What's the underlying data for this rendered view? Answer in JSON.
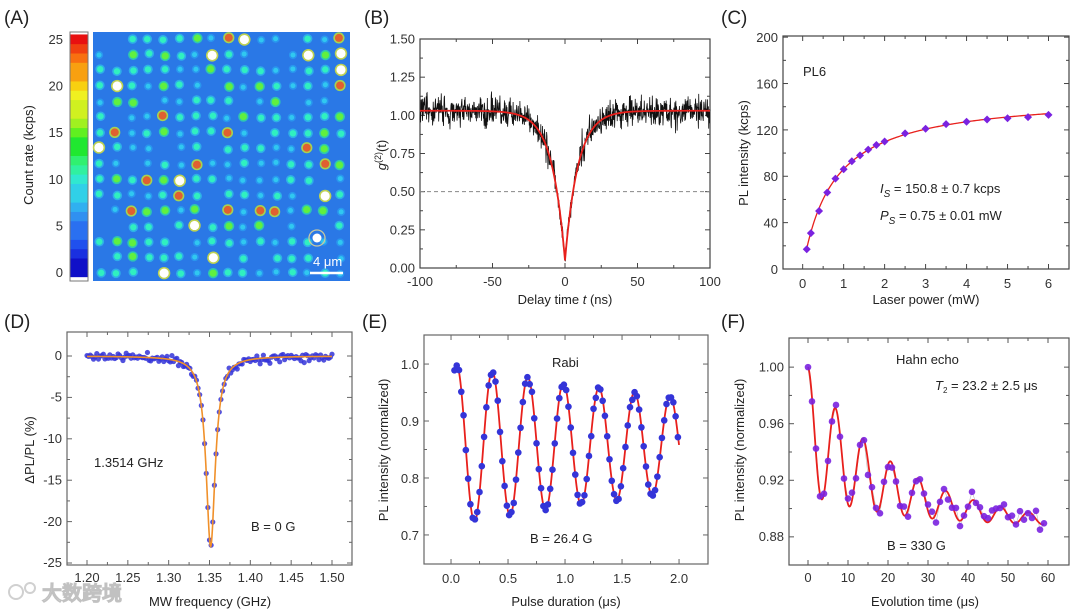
{
  "watermark": {
    "text": "大数跨境"
  },
  "panels": {
    "A": {
      "label": "(A)"
    },
    "B": {
      "label": "(B)"
    },
    "C": {
      "label": "(C)"
    },
    "D": {
      "label": "(D)"
    },
    "E": {
      "label": "(E)"
    },
    "F": {
      "label": "(F)"
    }
  },
  "colors": {
    "fit_red": "#e8201c",
    "fit_orange": "#f0902a",
    "points_blue": "#3434d8",
    "points_purple": "#7a22e0",
    "image_bg": "#2a78e6"
  },
  "chart_data": [
    {
      "id": "A",
      "type": "heatmap",
      "colorbar": {
        "label": "Count rate (kcps)",
        "ticks": [
          0,
          5,
          10,
          15,
          20,
          25
        ],
        "tick_labels": [
          "0",
          "5",
          "10",
          "15",
          "20",
          "25"
        ],
        "range": [
          0,
          26
        ]
      },
      "scale_bar": "4 μm",
      "grid": {
        "columns": 16,
        "rows": 16
      }
    },
    {
      "id": "B",
      "type": "line",
      "xlabel": "Delay time",
      "xlabel_var": "t",
      "xlabel_unit": " (ns)",
      "ylabel_main": "g",
      "ylabel_sup": "(2)",
      "ylabel_rest": "(t)",
      "xlim": [
        -100,
        100
      ],
      "ylim": [
        0,
        1.5
      ],
      "xticks": [
        -100,
        -50,
        0,
        50,
        100
      ],
      "xtick_labels": [
        "-100",
        "-50",
        "0",
        "50",
        "100"
      ],
      "yticks": [
        0,
        0.25,
        0.5,
        0.75,
        1.0,
        1.25,
        1.5
      ],
      "ytick_labels": [
        "0.00",
        "0.25",
        "0.50",
        "0.75",
        "1.00",
        "1.25",
        "1.50"
      ],
      "reference_line": 0.5,
      "fit": {
        "baseline": 1.03,
        "g2_zero": 0.05,
        "tau_ns": 9
      },
      "noise_amplitude": 0.07
    },
    {
      "id": "C",
      "type": "scatter",
      "xlabel": "Laser power (mW)",
      "ylabel": "PL intensity (kcps)",
      "xlim": [
        -0.48,
        6.5
      ],
      "ylim": [
        0,
        201
      ],
      "xticks": [
        0,
        1,
        2,
        3,
        4,
        5,
        6
      ],
      "xtick_labels": [
        "0",
        "1",
        "2",
        "3",
        "4",
        "5",
        "6"
      ],
      "yticks": [
        0,
        40,
        80,
        120,
        160,
        200
      ],
      "ytick_labels": [
        "0",
        "40",
        "80",
        "120",
        "160",
        "200"
      ],
      "x": [
        0.1,
        0.2,
        0.4,
        0.6,
        0.8,
        1.0,
        1.2,
        1.4,
        1.6,
        1.8,
        2.0,
        2.5,
        3.0,
        3.5,
        4.0,
        4.5,
        5.0,
        5.5,
        6.0
      ],
      "y": [
        17,
        31,
        50,
        66,
        78,
        86,
        93,
        98,
        103,
        107,
        110,
        117,
        121,
        125,
        127,
        129,
        130,
        131,
        133
      ],
      "fit": {
        "Is": 150.8,
        "Ps": 0.75
      },
      "annotations": {
        "name": "PL6",
        "is": {
          "sym": "I",
          "sub": "S",
          "rest": " = 150.8 ± 0.7 kcps"
        },
        "ps": {
          "sym": "P",
          "sub": "S",
          "rest": " = 0.75 ± 0.01 mW"
        }
      }
    },
    {
      "id": "D",
      "type": "scatter",
      "xlabel": "MW frequency (GHz)",
      "ylabel": "ΔPL/PL  (%)",
      "xlim": [
        1.1755,
        1.5245
      ],
      "ylim": [
        -25.24,
        2.9
      ],
      "xticks": [
        1.2,
        1.25,
        1.3,
        1.35,
        1.4,
        1.45,
        1.5
      ],
      "xtick_labels": [
        "1.20",
        "1.25",
        "1.30",
        "1.35",
        "1.40",
        "1.45",
        "1.50"
      ],
      "yticks": [
        0,
        -5,
        -10,
        -15,
        -20,
        -25
      ],
      "ytick_labels": [
        "0",
        "-5",
        "-10",
        "-15",
        "-20",
        "-25"
      ],
      "fit": {
        "center_GHz": 1.3514,
        "depth_percent": -23,
        "hwhm_GHz": 0.0068
      },
      "x_range_points": [
        1.2,
        1.5,
        0.002
      ],
      "noise_amplitude": 0.35,
      "annotations": {
        "freq": "1.3514 GHz",
        "field": "B = 0 G"
      }
    },
    {
      "id": "E",
      "type": "scatter",
      "xlabel": "Pulse duration (μs)",
      "ylabel": "PL intensity (normalized)",
      "xlim": [
        -0.237,
        2.254
      ],
      "ylim": [
        0.649,
        1.051
      ],
      "xticks": [
        0,
        0.5,
        1.0,
        1.5,
        2.0
      ],
      "xtick_labels": [
        "0.0",
        "0.5",
        "1.0",
        "1.5",
        "2.0"
      ],
      "yticks": [
        0.7,
        0.8,
        0.9,
        1.0
      ],
      "ytick_labels": [
        "0.7",
        "0.8",
        "0.9",
        "1.0"
      ],
      "fit": {
        "offset": 0.858,
        "amplitude": 0.142,
        "period_us": 0.312,
        "first_peak_us": 0.05,
        "decay_us": 3.8
      },
      "x_range_points": [
        0.03,
        2.0,
        0.02
      ],
      "noise_amplitude": 0.004,
      "annotations": {
        "title": "Rabi",
        "field": "B = 26.4 G"
      }
    },
    {
      "id": "F",
      "type": "scatter",
      "xlabel": "Evolution time (μs)",
      "ylabel": "PL intensity (normalized)",
      "xlim": [
        -4.75,
        65.25
      ],
      "ylim": [
        0.8601,
        1.0206
      ],
      "xticks": [
        0,
        10,
        20,
        30,
        40,
        50,
        60
      ],
      "xtick_labels": [
        "0",
        "10",
        "20",
        "30",
        "40",
        "50",
        "60"
      ],
      "yticks": [
        0.88,
        0.92,
        0.96,
        1.0
      ],
      "ytick_labels": [
        "0.88",
        "0.92",
        "0.96",
        "1.00"
      ],
      "fit": {
        "offset": 0.887,
        "amplitude": 0.113,
        "T2_us": 23.2,
        "period_us": 6.9
      },
      "x_range_points": [
        0,
        59,
        1
      ],
      "noise_amplitude": 0.005,
      "annotations": {
        "title": "Hahn echo",
        "t2": {
          "sym": "T",
          "sub": "2",
          "rest": " = 23.2 ± 2.5 μs"
        },
        "field": "B = 330 G"
      }
    }
  ]
}
